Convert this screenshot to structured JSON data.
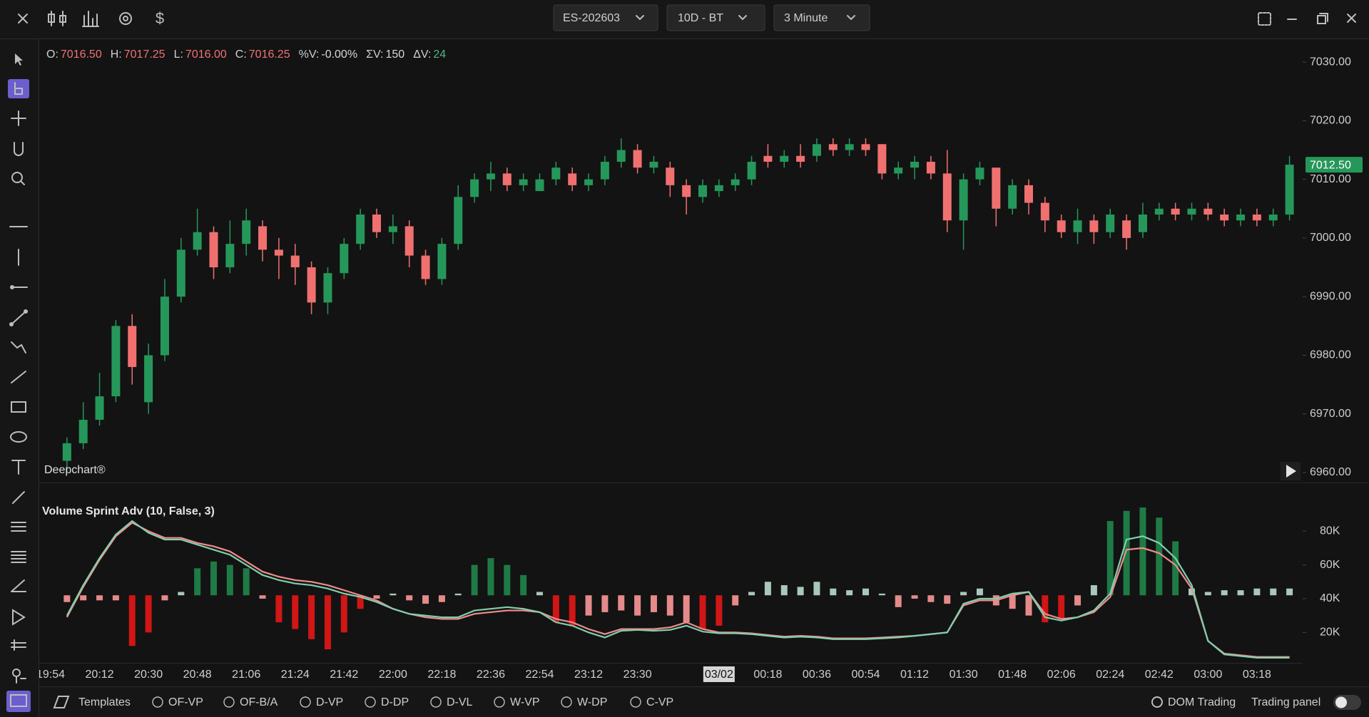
{
  "toolbar": {
    "symbol": "ES-202603",
    "range": "10D - BT",
    "interval": "3 Minute"
  },
  "info_bar": [
    {
      "label": "O:",
      "value": "7016.50",
      "color": "#f07373"
    },
    {
      "label": "H:",
      "value": "7017.25",
      "color": "#f07373"
    },
    {
      "label": "L:",
      "value": "7016.00",
      "color": "#f07373"
    },
    {
      "label": "C:",
      "value": "7016.25",
      "color": "#f07373"
    },
    {
      "label": "%V:",
      "value": "-0.00%",
      "color": "#d8d8d8"
    },
    {
      "label": "ΣV:",
      "value": "150",
      "color": "#d8d8d8"
    },
    {
      "label": "ΔV:",
      "value": "24",
      "color": "#4fb487"
    }
  ],
  "watermark": "Deepchart®",
  "chart_data": [
    {
      "type": "candlestick",
      "up_color": "#26975a",
      "down_color": "#f07070",
      "open": [
        6962,
        6965,
        6969,
        6973,
        6985,
        6972,
        6980,
        6990,
        6998,
        7001,
        6995,
        6999,
        7002,
        6998,
        6997,
        6995,
        6989,
        6994,
        6999,
        7004,
        7001,
        7002,
        6997,
        6993,
        6999,
        7007,
        7010,
        7011,
        7009,
        7008,
        7010,
        7011,
        7009,
        7010,
        7013,
        7015,
        7012,
        7012,
        7009,
        7007,
        7008,
        7009,
        7010,
        7014,
        7013,
        7014,
        7014,
        7016,
        7015,
        7016,
        7016,
        7011,
        7012,
        7013,
        7011,
        7003,
        7010,
        7012,
        7005,
        7009,
        7006,
        7003,
        7001,
        7003,
        7001,
        7003,
        7001,
        7004,
        7005,
        7004,
        7005,
        7004,
        7003,
        7004,
        7003,
        7004
      ],
      "high": [
        6966,
        6972,
        6977,
        6986,
        6987,
        6982,
        6993,
        7000,
        7005,
        7002,
        7003,
        7005,
        7003,
        7000,
        6999,
        6996,
        6995,
        7000,
        7005,
        7005,
        7004,
        7003,
        6998,
        7000,
        7009,
        7011,
        7013,
        7012,
        7011,
        7011,
        7013,
        7012,
        7011,
        7014,
        7017,
        7016,
        7014,
        7013,
        7010,
        7010,
        7010,
        7011,
        7014,
        7016,
        7015,
        7016,
        7017,
        7017,
        7017,
        7017,
        7016,
        7013,
        7014,
        7014,
        7015,
        7011,
        7013,
        7012,
        7010,
        7010,
        7007,
        7004,
        7005,
        7004,
        7005,
        7004,
        7006,
        7006,
        7006,
        7006,
        7006,
        7005,
        7005,
        7005,
        7005,
        7014
      ],
      "low": [
        6960,
        6964,
        6968,
        6972,
        6975,
        6970,
        6979,
        6989,
        6997,
        6993,
        6994,
        6997,
        6996,
        6993,
        6992,
        6987,
        6987,
        6993,
        6998,
        7000,
        6999,
        6995,
        6992,
        6992,
        6998,
        7006,
        7008,
        7008,
        7008,
        7008,
        7009,
        7008,
        7008,
        7009,
        7012,
        7011,
        7011,
        7007,
        7004,
        7006,
        7007,
        7008,
        7009,
        7012,
        7012,
        7012,
        7013,
        7014,
        7014,
        7014,
        7010,
        7010,
        7010,
        7010,
        7001,
        6998,
        7009,
        7002,
        7004,
        7004,
        7001,
        7000,
        6999,
        6999,
        7000,
        6998,
        7000,
        7003,
        7003,
        7003,
        7003,
        7002,
        7002,
        7002,
        7002,
        7003
      ],
      "close": [
        6965,
        6969,
        6973,
        6985,
        6978,
        6980,
        6990,
        6998,
        7001,
        6995,
        6999,
        7003,
        6998,
        6997,
        6995,
        6989,
        6994,
        6999,
        7004,
        7001,
        7002,
        6997,
        6993,
        6999,
        7007,
        7010,
        7011,
        7009,
        7010,
        7010,
        7012,
        7009,
        7010,
        7013,
        7015,
        7012,
        7013,
        7009,
        7007,
        7009,
        7009,
        7010,
        7013,
        7013,
        7014,
        7013,
        7016,
        7015,
        7016,
        7015,
        7011,
        7012,
        7013,
        7011,
        7003,
        7010,
        7012,
        7005,
        7009,
        7006,
        7003,
        7001,
        7003,
        7001,
        7004,
        7000,
        7004,
        7005,
        7004,
        7005,
        7004,
        7003,
        7004,
        7003,
        7004,
        7012.5
      ],
      "ylim": [
        6958.3,
        7033.9
      ],
      "yticks": [
        {
          "value": 7030,
          "label": "7030.00"
        },
        {
          "value": 7020,
          "label": "7020.00"
        },
        {
          "value": 7010,
          "label": "7010.00"
        },
        {
          "value": 7000,
          "label": "7000.00"
        },
        {
          "value": 6990,
          "label": "6990.00"
        },
        {
          "value": 6980,
          "label": "6980.00"
        },
        {
          "value": 6970,
          "label": "6970.00"
        },
        {
          "value": 6960,
          "label": "6960.00"
        }
      ],
      "last_price": {
        "value": 7012.5,
        "label": "7012.50"
      }
    },
    {
      "type": "histogram_line",
      "title": "Volume Sprint Adv (10, False, 3)",
      "series": [
        {
          "kind": "bar",
          "baseline": 42000,
          "values": [
            38000,
            39000,
            39000,
            39000,
            12000,
            20000,
            39000,
            44000,
            58000,
            62000,
            60000,
            58000,
            40000,
            26000,
            22000,
            16000,
            10000,
            20000,
            34000,
            40000,
            43000,
            39000,
            37000,
            38000,
            43000,
            60000,
            64000,
            60000,
            54000,
            44000,
            26000,
            24000,
            30000,
            32000,
            33000,
            30000,
            32000,
            30000,
            26000,
            22000,
            24000,
            36000,
            44000,
            50000,
            48000,
            47000,
            50000,
            46000,
            45000,
            46000,
            43000,
            35000,
            40000,
            38000,
            37000,
            44000,
            46000,
            36000,
            34000,
            30000,
            26000,
            28000,
            36000,
            48000,
            86000,
            92000,
            94000,
            88000,
            74000,
            46000,
            44000,
            45000,
            45000,
            46000,
            46000,
            46000
          ],
          "colors": [
            "#e58a8a",
            "#e58a8a",
            "#e58a8a",
            "#e58a8a",
            "#d01616",
            "#d01616",
            "#e58a8a",
            "#a9c9b8",
            "#1f7a45",
            "#1f7a45",
            "#1f7a45",
            "#1f7a45",
            "#e58a8a",
            "#d01616",
            "#d01616",
            "#d01616",
            "#d01616",
            "#d01616",
            "#d01616",
            "#e58a8a",
            "#a9c9b8",
            "#e58a8a",
            "#e58a8a",
            "#e58a8a",
            "#a9c9b8",
            "#1f7a45",
            "#1f7a45",
            "#1f7a45",
            "#1f7a45",
            "#a9c9b8",
            "#d01616",
            "#d01616",
            "#e58a8a",
            "#e58a8a",
            "#e58a8a",
            "#e58a8a",
            "#e58a8a",
            "#e58a8a",
            "#e58a8a",
            "#d01616",
            "#d01616",
            "#e58a8a",
            "#a9c9b8",
            "#a9c9b8",
            "#a9c9b8",
            "#a9c9b8",
            "#a9c9b8",
            "#a9c9b8",
            "#a9c9b8",
            "#a9c9b8",
            "#a9c9b8",
            "#e58a8a",
            "#e58a8a",
            "#e58a8a",
            "#e58a8a",
            "#a9c9b8",
            "#a9c9b8",
            "#e58a8a",
            "#e58a8a",
            "#e58a8a",
            "#d01616",
            "#d01616",
            "#e58a8a",
            "#a9c9b8",
            "#1f7a45",
            "#1f7a45",
            "#1f7a45",
            "#1f7a45",
            "#1f7a45",
            "#a9c9b8",
            "#a9c9b8",
            "#a9c9b8",
            "#a9c9b8",
            "#a9c9b8",
            "#a9c9b8",
            "#a9c9b8"
          ]
        },
        {
          "kind": "line",
          "color": "#f08c8c",
          "values": [
            29000,
            47000,
            63000,
            77000,
            85000,
            80000,
            76000,
            76000,
            73000,
            71000,
            68000,
            62000,
            56000,
            53000,
            51000,
            50000,
            48000,
            45000,
            42000,
            39000,
            34000,
            31000,
            29000,
            28000,
            28000,
            31000,
            32000,
            33000,
            33000,
            32000,
            28000,
            26000,
            22000,
            19000,
            22000,
            22000,
            22000,
            23000,
            26000,
            22000,
            20000,
            20000,
            19500,
            18500,
            17500,
            18000,
            17500,
            16500,
            16500,
            16500,
            17000,
            17500,
            18000,
            19000,
            20000,
            36000,
            39000,
            39000,
            42000,
            44000,
            31000,
            28000,
            29000,
            32000,
            41000,
            69000,
            70000,
            67000,
            60000,
            46000,
            15000,
            7500,
            6500,
            5500,
            5500,
            5500
          ]
        },
        {
          "kind": "line",
          "color": "#7fd0ae",
          "values": [
            30000,
            48000,
            64000,
            78000,
            86000,
            79000,
            75000,
            75000,
            72000,
            69000,
            66000,
            60000,
            54000,
            51000,
            49000,
            48000,
            46000,
            43000,
            41000,
            38000,
            34000,
            31000,
            30000,
            29000,
            29000,
            33000,
            34000,
            35000,
            34000,
            32000,
            26000,
            24000,
            20000,
            17000,
            21000,
            21500,
            21000,
            21500,
            24000,
            20500,
            19500,
            19500,
            19000,
            18000,
            17000,
            17500,
            17000,
            16000,
            16000,
            16000,
            16500,
            17000,
            18000,
            19000,
            20000,
            37000,
            40000,
            40000,
            43000,
            44000,
            29000,
            27000,
            29000,
            33000,
            43000,
            75000,
            77000,
            73000,
            64000,
            48000,
            15000,
            7000,
            6000,
            5000,
            5000,
            5000
          ]
        }
      ],
      "ylim": [
        2000,
        97400
      ],
      "yticks": [
        {
          "value": 20000,
          "label": "20K"
        },
        {
          "value": 40000,
          "label": "40K"
        },
        {
          "value": 60000,
          "label": "60K"
        },
        {
          "value": 80000,
          "label": "80K"
        }
      ],
      "xticks": [
        {
          "value": 0,
          "label": "19:54"
        },
        {
          "value": 3,
          "label": "20:12"
        },
        {
          "value": 6,
          "label": "20:30"
        },
        {
          "value": 9,
          "label": "20:48"
        },
        {
          "value": 12,
          "label": "21:06"
        },
        {
          "value": 15,
          "label": "21:24"
        },
        {
          "value": 18,
          "label": "21:42"
        },
        {
          "value": 21,
          "label": "22:00"
        },
        {
          "value": 24,
          "label": "22:18"
        },
        {
          "value": 27,
          "label": "22:36"
        },
        {
          "value": 30,
          "label": "22:54"
        },
        {
          "value": 33,
          "label": "23:12"
        },
        {
          "value": 36,
          "label": "23:30"
        },
        {
          "value": 41,
          "label": "03/02",
          "highlight": true
        },
        {
          "value": 44,
          "label": "00:18"
        },
        {
          "value": 47,
          "label": "00:36"
        },
        {
          "value": 50,
          "label": "00:54"
        },
        {
          "value": 53,
          "label": "01:12"
        },
        {
          "value": 56,
          "label": "01:30"
        },
        {
          "value": 59,
          "label": "01:48"
        },
        {
          "value": 62,
          "label": "02:06"
        },
        {
          "value": 65,
          "label": "02:24"
        },
        {
          "value": 68,
          "label": "02:42"
        },
        {
          "value": 71,
          "label": "03:00"
        },
        {
          "value": 74,
          "label": "03:18"
        }
      ]
    }
  ],
  "bottom_bar": {
    "templates": "Templates",
    "studies": [
      "OF-VP",
      "OF-B/A",
      "D-VP",
      "D-DP",
      "D-VL",
      "W-VP",
      "W-DP",
      "C-VP"
    ],
    "dom": "DOM Trading",
    "panel": "Trading panel"
  }
}
